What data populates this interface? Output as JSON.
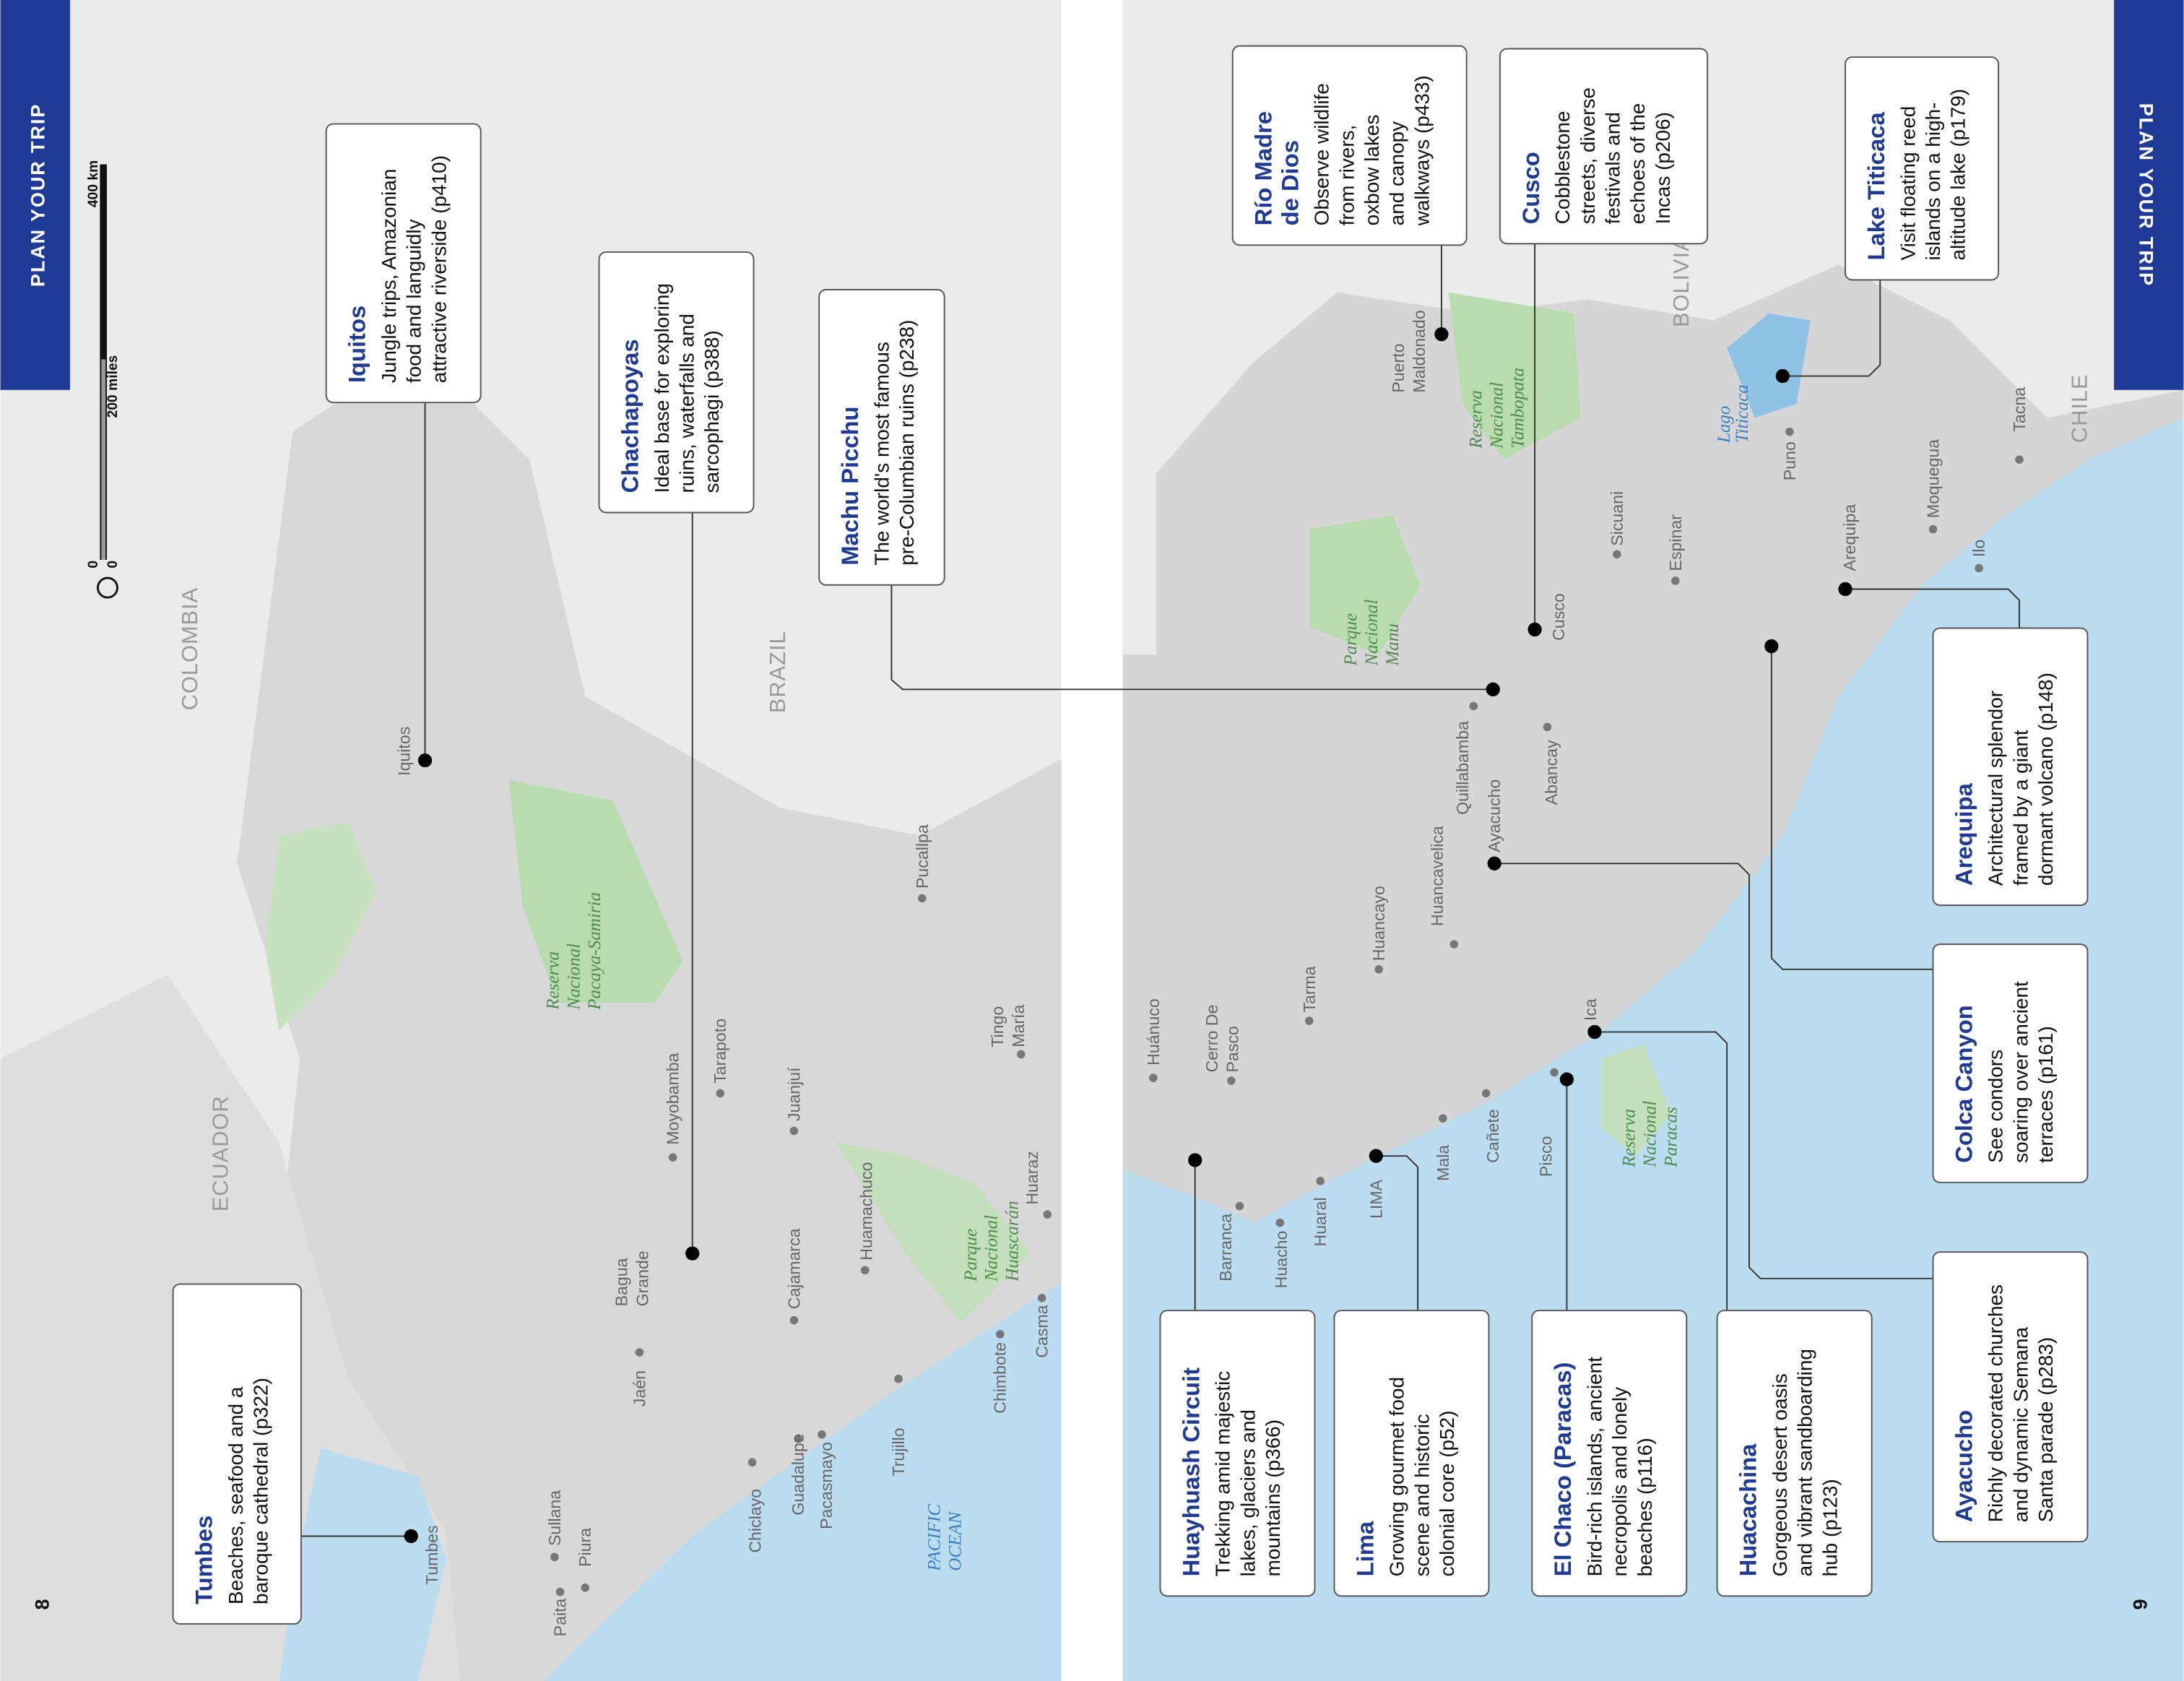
{
  "left_page": {
    "tab": "PLAN YOUR TRIP",
    "page_number": "8",
    "scale": {
      "zero_km": "0",
      "km": "400 km",
      "zero_miles": "0",
      "miles": "200 miles"
    },
    "countries": [
      "COLOMBIA",
      "ECUADOR",
      "BRAZIL"
    ],
    "ocean": [
      "PACIFIC",
      "OCEAN"
    ],
    "parks": [
      [
        "Reserva",
        "Nacional",
        "Pacaya-Samiria"
      ],
      [
        "Parque",
        "Nacional",
        "Huascarán"
      ]
    ],
    "towns": [
      "Iquitos",
      "Pucallpa",
      "Moyobamba",
      "Tarapoto",
      "Juanjuí",
      [
        "Tingo",
        "María"
      ],
      [
        "Bagua",
        "Grande"
      ],
      "Jaén",
      "Cajamarca",
      "Huamachuco",
      "Huaraz",
      "Chimbote",
      "Casma",
      "Trujillo",
      "Pacasmayo",
      "Guadalupe",
      "Chiclayo",
      "Sullana",
      "Piura",
      "Paita",
      "Tumbes"
    ],
    "callouts": [
      {
        "title": [
          "Tumbes"
        ],
        "description": [
          "Beaches, seafood and a",
          "baroque cathedral (p322)"
        ]
      },
      {
        "title": [
          "Iquitos"
        ],
        "description": [
          "Jungle trips, Amazonian",
          "food and languidly",
          "attractive riverside (p410)"
        ]
      },
      {
        "title": [
          "Chachapoyas"
        ],
        "description": [
          "Ideal base for exploring",
          "ruins, waterfalls and",
          "sarcophagi (p388)"
        ]
      },
      {
        "title": [
          "Machu Picchu"
        ],
        "description": [
          "The world's most famous",
          "pre-Columbian ruins (p238)"
        ]
      }
    ]
  },
  "right_page": {
    "tab": "PLAN YOUR TRIP",
    "page_number": "9",
    "countries": [
      "BOLIVIA",
      "CHILE"
    ],
    "lake": [
      "Lago",
      "Titicaca"
    ],
    "parks": [
      [
        "Reserva",
        "Nacional",
        "Tambopata"
      ],
      [
        "Parque",
        "Nacional",
        "Manu"
      ],
      [
        "Reserva",
        "Nacional",
        "Paracas"
      ]
    ],
    "towns": [
      [
        "Puerto",
        "Maldonado"
      ],
      "Cusco",
      "Sicuani",
      "Espinar",
      "Puno",
      "Tacna",
      "Moquegua",
      "Ilo",
      "Arequipa",
      "Quillabamba",
      "Abancay",
      "Ayacucho",
      "Huancayo",
      "Huancavelica",
      "Tarma",
      "Ica",
      "Pisco",
      "Cañete",
      "Mala",
      "LIMA",
      "Huaral",
      "Huacho",
      "Barranca",
      "Huánuco",
      [
        "Cerro De",
        "Pasco"
      ]
    ],
    "callouts": [
      {
        "title": [
          "Río Madre",
          "de Dios"
        ],
        "description": [
          "Observe wildlife",
          "from rivers,",
          "oxbow lakes",
          "and canopy",
          "walkways (p433)"
        ]
      },
      {
        "title": [
          "Cusco"
        ],
        "description": [
          "Cobblestone",
          "streets, diverse",
          "festivals and",
          "echoes of the",
          "Incas (p206)"
        ]
      },
      {
        "title": [
          "Lake Titicaca"
        ],
        "description": [
          "Visit floating reed",
          "islands on a high-",
          "altitude lake (p179)"
        ]
      },
      {
        "title": [
          "Arequipa"
        ],
        "description": [
          "Architectural splendor",
          "framed by a giant",
          "dormant volcano (p148)"
        ]
      },
      {
        "title": [
          "Colca Canyon"
        ],
        "description": [
          "See condors",
          "soaring over ancient",
          "terraces (p161)"
        ]
      },
      {
        "title": [
          "Ayacucho"
        ],
        "description": [
          "Richly decorated churches",
          "and dynamic Semana",
          "Santa parade (p283)"
        ]
      },
      {
        "title": [
          "Huacachina"
        ],
        "description": [
          "Gorgeous desert oasis",
          "and vibrant sandboarding",
          "hub (p123)"
        ]
      },
      {
        "title": [
          "El Chaco (Paracas)"
        ],
        "description": [
          "Bird-rich islands, ancient",
          "necropolis and lonely",
          "beaches (p116)"
        ]
      },
      {
        "title": [
          "Lima"
        ],
        "description": [
          "Growing gourmet food",
          "scene and historic",
          "colonial core (p52)"
        ]
      },
      {
        "title": [
          "Huayhuash Circuit"
        ],
        "description": [
          "Trekking amid majestic",
          "lakes, glaciers and",
          "mountains (p366)"
        ]
      }
    ]
  }
}
